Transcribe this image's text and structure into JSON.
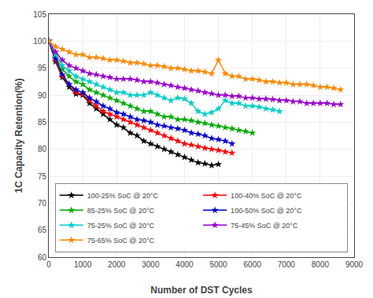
{
  "chart_data": {
    "type": "line",
    "xlabel": "Number of DST Cycles",
    "ylabel": "1C Capacity Retention(%)",
    "xlim": [
      0,
      9000
    ],
    "ylim": [
      60,
      105
    ],
    "xticks": [
      0,
      1000,
      2000,
      3000,
      4000,
      5000,
      6000,
      7000,
      8000,
      9000
    ],
    "yticks": [
      60,
      65,
      70,
      75,
      80,
      85,
      90,
      95,
      100,
      105
    ],
    "grid": true,
    "legend": "lower left",
    "marker": "star",
    "series": [
      {
        "name": "100-25% SoC @ 20°C",
        "color": "#000000",
        "x": [
          0,
          200,
          400,
          600,
          800,
          1000,
          1200,
          1400,
          1600,
          1800,
          2000,
          2200,
          2400,
          2600,
          2800,
          3000,
          3200,
          3400,
          3600,
          3800,
          4000,
          4200,
          4400,
          4600,
          4800,
          5000
        ],
        "values": [
          100,
          96.2,
          93.3,
          91.5,
          90.2,
          90.0,
          88.5,
          87.5,
          86.5,
          85.5,
          84.5,
          84.0,
          83.0,
          82.5,
          81.5,
          81.0,
          80.5,
          80.0,
          79.5,
          79.0,
          78.5,
          78.0,
          77.5,
          77.3,
          77.0,
          77.2
        ]
      },
      {
        "name": "100-40% SoC @ 20°C",
        "color": "#ff0000",
        "x": [
          0,
          200,
          400,
          600,
          800,
          1000,
          1200,
          1400,
          1600,
          1800,
          2000,
          2200,
          2400,
          2600,
          2800,
          3000,
          3200,
          3400,
          3600,
          3800,
          4000,
          4200,
          4400,
          4600,
          4800,
          5000,
          5200,
          5400
        ],
        "values": [
          100,
          96.5,
          93.5,
          92.0,
          90.5,
          90.2,
          89.0,
          88.0,
          87.0,
          86.5,
          86.0,
          85.5,
          85.0,
          84.5,
          84.0,
          83.5,
          83.0,
          82.5,
          82.0,
          81.5,
          81.0,
          80.8,
          80.5,
          80.2,
          80.0,
          79.8,
          79.5,
          79.3
        ]
      },
      {
        "name": "85-25% SoC @ 20°C",
        "color": "#00aa00",
        "x": [
          0,
          200,
          400,
          600,
          800,
          1000,
          1200,
          1400,
          1600,
          1800,
          2000,
          2200,
          2400,
          2600,
          2800,
          3000,
          3200,
          3400,
          3600,
          3800,
          4000,
          4200,
          4400,
          4600,
          4800,
          5000,
          5200,
          5400,
          5600,
          5800,
          6000
        ],
        "values": [
          100,
          97.0,
          94.8,
          93.5,
          92.5,
          92.0,
          91.0,
          90.5,
          90.0,
          89.5,
          89.0,
          88.5,
          88.0,
          87.5,
          87.0,
          87.0,
          86.5,
          86.0,
          86.0,
          85.5,
          85.5,
          85.3,
          85.0,
          84.8,
          84.5,
          84.3,
          84.0,
          83.8,
          83.5,
          83.3,
          83.0
        ]
      },
      {
        "name": "100-50% SoC @ 20°C",
        "color": "#0000cc",
        "x": [
          0,
          200,
          400,
          600,
          800,
          1000,
          1200,
          1400,
          1600,
          1800,
          2000,
          2200,
          2400,
          2600,
          2800,
          3000,
          3200,
          3400,
          3600,
          3800,
          4000,
          4200,
          4400,
          4600,
          4800,
          5000,
          5200,
          5400
        ],
        "values": [
          100,
          96.8,
          93.8,
          92.0,
          91.0,
          90.5,
          89.5,
          88.8,
          88.0,
          87.5,
          86.8,
          86.5,
          86.0,
          85.5,
          85.3,
          85.0,
          84.5,
          84.3,
          84.0,
          83.8,
          83.5,
          83.0,
          82.8,
          82.5,
          82.0,
          81.8,
          81.5,
          81.0
        ]
      },
      {
        "name": "75-25% SoC @ 20°C",
        "color": "#00cccc",
        "x": [
          0,
          200,
          400,
          600,
          800,
          1000,
          1200,
          1400,
          1600,
          1800,
          2000,
          2200,
          2400,
          2600,
          2800,
          3000,
          3200,
          3400,
          3600,
          3800,
          4000,
          4200,
          4400,
          4600,
          4800,
          5000,
          5200,
          5400,
          5600,
          5800,
          6000,
          6200,
          6400,
          6600,
          6800
        ],
        "values": [
          100,
          97.5,
          95.5,
          94.5,
          93.5,
          93.0,
          92.5,
          92.0,
          91.5,
          91.0,
          90.5,
          90.5,
          90.0,
          90.0,
          90.0,
          90.5,
          90.0,
          89.5,
          89.0,
          89.5,
          89.3,
          88.5,
          87.0,
          86.5,
          86.8,
          87.5,
          89.0,
          88.5,
          88.5,
          88.0,
          88.0,
          87.8,
          87.5,
          87.3,
          87.0
        ]
      },
      {
        "name": "75-45% SoC @ 20°C",
        "color": "#9900cc",
        "x": [
          0,
          200,
          400,
          600,
          800,
          1000,
          1200,
          1400,
          1600,
          1800,
          2000,
          2200,
          2400,
          2600,
          2800,
          3000,
          3200,
          3400,
          3600,
          3800,
          4000,
          4200,
          4400,
          4600,
          4800,
          5000,
          5200,
          5400,
          5600,
          5800,
          6000,
          6200,
          6400,
          6600,
          6800,
          7000,
          7200,
          7400,
          7600,
          7800,
          8000,
          8200,
          8400,
          8600
        ],
        "values": [
          100,
          98.0,
          96.5,
          95.5,
          95.0,
          94.5,
          94.0,
          93.8,
          93.5,
          93.3,
          93.0,
          93.0,
          93.0,
          92.8,
          92.5,
          92.5,
          92.3,
          92.0,
          91.8,
          91.5,
          91.3,
          91.0,
          90.8,
          90.5,
          90.3,
          90.0,
          90.0,
          89.8,
          89.8,
          89.5,
          89.5,
          89.3,
          89.3,
          89.2,
          89.0,
          89.0,
          88.8,
          88.8,
          88.5,
          88.5,
          88.5,
          88.5,
          88.3,
          88.3
        ]
      },
      {
        "name": "75-65% SoC @ 20°C",
        "color": "#ff8800",
        "x": [
          0,
          200,
          400,
          600,
          800,
          1000,
          1200,
          1400,
          1600,
          1800,
          2000,
          2200,
          2400,
          2600,
          2800,
          3000,
          3200,
          3400,
          3600,
          3800,
          4000,
          4200,
          4400,
          4600,
          4800,
          5000,
          5200,
          5400,
          5600,
          5800,
          6000,
          6200,
          6400,
          6600,
          6800,
          7000,
          7200,
          7400,
          7600,
          7800,
          8000,
          8200,
          8400,
          8600
        ],
        "values": [
          100,
          99.0,
          98.5,
          98.0,
          97.5,
          97.5,
          97.0,
          97.0,
          96.8,
          96.5,
          96.5,
          96.3,
          96.0,
          96.0,
          95.8,
          95.5,
          95.5,
          95.3,
          95.0,
          95.0,
          94.8,
          94.5,
          94.5,
          94.3,
          94.0,
          96.5,
          94.0,
          93.5,
          93.5,
          93.0,
          93.0,
          92.8,
          92.5,
          92.5,
          92.3,
          92.3,
          92.0,
          92.0,
          92.0,
          91.8,
          91.5,
          91.5,
          91.3,
          91.0
        ]
      }
    ]
  }
}
